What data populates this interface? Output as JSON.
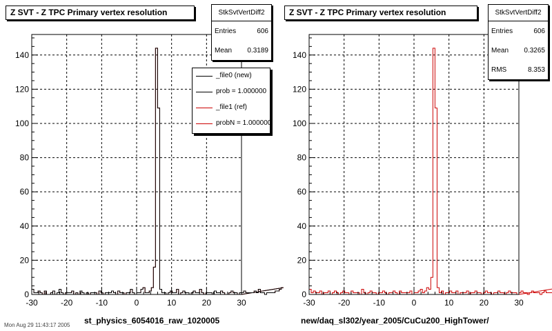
{
  "pads": [
    {
      "title": "Z SVT - Z TPC Primary vertex resolution",
      "stats": {
        "name": "StkSvtVertDiff2",
        "rows": [
          {
            "label": "Entries",
            "value": "606"
          },
          {
            "label": "Mean",
            "value": "0.3189"
          }
        ]
      },
      "legend": [
        {
          "label": "_file0 (new)",
          "color": "#000000"
        },
        {
          "label": "prob = 1.000000",
          "color": "#000000"
        },
        {
          "label": "_file1 (ref)",
          "color": "#cc0000"
        },
        {
          "label": "probN = 1.000000",
          "color": "#cc0000"
        }
      ],
      "xtitle": "st_physics_6054016_raw_1020005"
    },
    {
      "title": "Z SVT - Z TPC Primary vertex resolution",
      "stats": {
        "name": "StkSvtVertDiff2",
        "rows": [
          {
            "label": "Entries",
            "value": "606"
          },
          {
            "label": "Mean",
            "value": "0.3265"
          },
          {
            "label": "RMS",
            "value": "8.353"
          }
        ]
      },
      "xtitle": "new/daq_sl302/year_2005/CuCu200_HighTower/"
    }
  ],
  "footer": "Mon Aug 29 11:43:17 2005",
  "chart_data": [
    {
      "type": "histogram",
      "title": "Z SVT - Z TPC Primary vertex resolution",
      "xlabel": "st_physics_6054016_raw_1020005",
      "xlim": [
        -30,
        30
      ],
      "ylim": [
        0,
        152
      ],
      "xticks": [
        -30,
        -20,
        -10,
        0,
        10,
        20,
        30
      ],
      "yticks": [
        0,
        20,
        40,
        60,
        80,
        100,
        120,
        140
      ],
      "grid": true,
      "bin_width": 0.6,
      "series": [
        {
          "name": "_file1 (ref)",
          "color": "#cc0000",
          "counts": [
            3,
            1,
            1,
            2,
            1,
            0,
            2,
            0,
            0,
            1,
            2,
            0,
            1,
            3,
            1,
            0,
            1,
            1,
            1,
            2,
            0,
            1,
            0,
            2,
            1,
            0,
            1,
            0,
            1,
            1,
            1,
            0,
            2,
            1,
            0,
            1,
            1,
            1,
            2,
            1,
            0,
            2,
            1,
            1,
            0,
            1,
            1,
            3,
            1,
            0,
            1,
            1,
            3,
            4,
            1,
            1,
            2,
            4,
            16,
            144,
            109,
            3,
            1,
            1,
            0,
            1,
            2,
            1,
            1,
            3,
            0,
            1,
            2,
            1,
            1,
            0,
            1,
            2,
            1,
            1,
            3,
            1,
            0,
            1,
            1,
            1,
            0,
            2,
            1,
            1,
            2,
            1,
            0,
            0,
            1,
            2,
            1,
            1,
            0,
            1,
            1,
            2,
            1,
            1,
            1,
            1,
            2,
            1,
            3,
            1,
            1,
            0,
            1,
            1,
            1,
            1,
            2,
            2,
            3,
            4
          ]
        },
        {
          "name": "_file0 (new)",
          "color": "#000000",
          "counts": [
            3,
            1,
            1,
            2,
            1,
            0,
            2,
            0,
            0,
            1,
            2,
            0,
            1,
            3,
            1,
            0,
            1,
            1,
            1,
            2,
            0,
            1,
            0,
            2,
            1,
            0,
            1,
            0,
            1,
            1,
            1,
            0,
            2,
            1,
            0,
            1,
            1,
            1,
            2,
            1,
            0,
            2,
            1,
            1,
            0,
            1,
            1,
            3,
            1,
            0,
            1,
            1,
            3,
            4,
            1,
            1,
            2,
            4,
            16,
            144,
            109,
            3,
            1,
            1,
            0,
            1,
            2,
            1,
            1,
            3,
            0,
            1,
            2,
            1,
            1,
            0,
            1,
            2,
            1,
            1,
            3,
            1,
            0,
            1,
            1,
            1,
            0,
            2,
            1,
            1,
            2,
            1,
            0,
            0,
            1,
            2,
            1,
            1,
            0,
            1,
            1,
            2,
            1,
            1,
            1,
            1,
            2,
            1,
            3,
            1,
            1,
            0,
            1,
            1,
            1,
            1,
            2,
            2,
            3,
            4
          ]
        }
      ]
    },
    {
      "type": "histogram",
      "title": "Z SVT - Z TPC Primary vertex resolution",
      "xlabel": "new/daq_sl302/year_2005/CuCu200_HighTower/",
      "xlim": [
        -30,
        30
      ],
      "ylim": [
        0,
        152
      ],
      "xticks": [
        -30,
        -20,
        -10,
        0,
        10,
        20,
        30
      ],
      "yticks": [
        0,
        20,
        40,
        60,
        80,
        100,
        120,
        140
      ],
      "grid": true,
      "bin_width": 0.6,
      "series": [
        {
          "name": "",
          "color": "#cc0000",
          "counts": [
            3,
            1,
            2,
            1,
            1,
            2,
            0,
            1,
            1,
            2,
            0,
            1,
            2,
            1,
            0,
            1,
            2,
            1,
            1,
            0,
            2,
            1,
            1,
            1,
            0,
            3,
            1,
            0,
            1,
            2,
            1,
            1,
            0,
            1,
            1,
            2,
            1,
            0,
            1,
            1,
            2,
            1,
            0,
            2,
            1,
            1,
            1,
            1,
            2,
            0,
            1,
            1,
            2,
            3,
            1,
            2,
            4,
            3,
            10,
            144,
            109,
            4,
            1,
            2,
            0,
            1,
            1,
            2,
            1,
            1,
            2,
            0,
            1,
            1,
            1,
            2,
            0,
            1,
            1,
            2,
            1,
            1,
            0,
            1,
            2,
            1,
            1,
            0,
            1,
            1,
            2,
            1,
            1,
            0,
            1,
            2,
            1,
            1,
            1,
            0,
            1,
            2,
            1,
            1,
            0,
            1,
            2,
            1,
            1,
            1,
            0,
            1,
            2,
            1,
            1,
            1,
            2,
            1,
            3,
            4
          ]
        }
      ]
    }
  ]
}
